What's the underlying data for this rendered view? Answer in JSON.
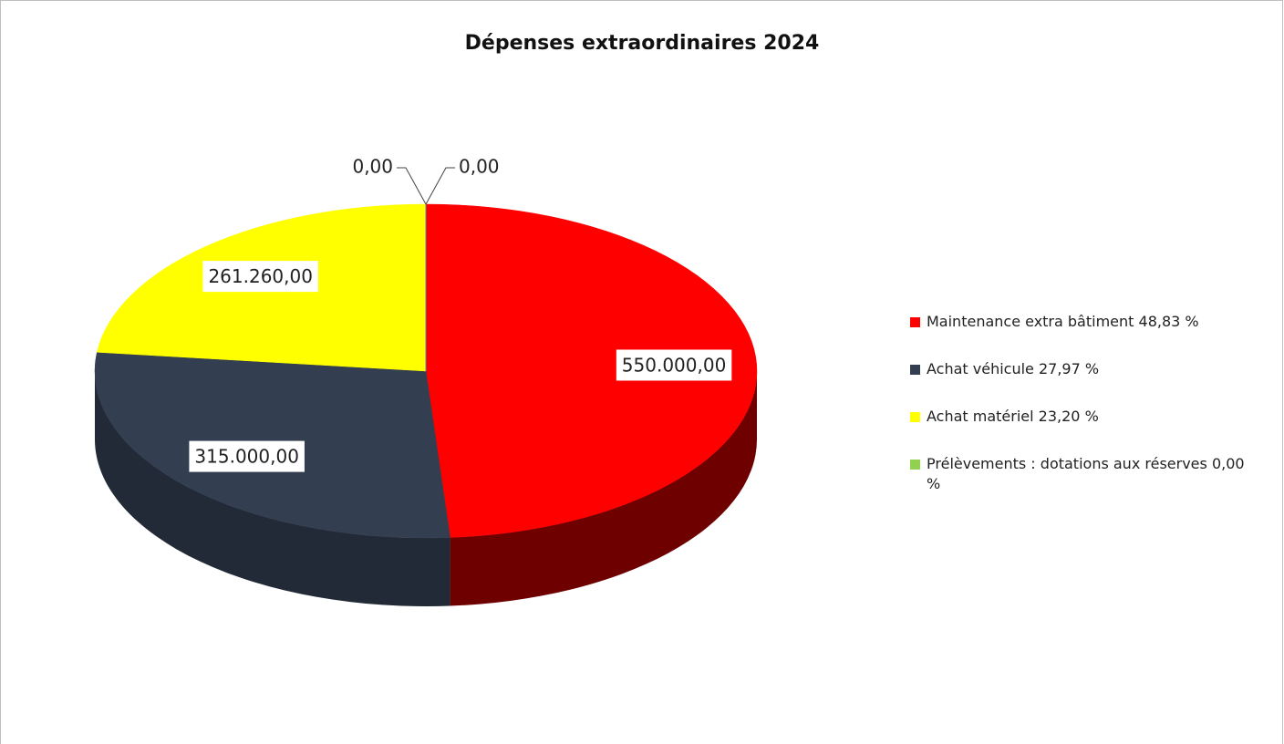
{
  "chart_data": {
    "type": "pie3d",
    "title": "Dépenses extraordinaires 2024",
    "categories": [
      "Maintenance extra bâtiment 48,83 %",
      "Achat véhicule 27,97 %",
      "Achat matériel 23,20 %",
      "Prélèvements : dotations aux réserves 0,00 %",
      null
    ],
    "values": [
      550000,
      315000,
      261260,
      0,
      0
    ],
    "value_labels": [
      "550.000,00",
      "315.000,00",
      "261.260,00",
      "0,00",
      "0,00"
    ],
    "colors": [
      "#ff0000",
      "#333f50",
      "#ffff00",
      "#92d050",
      "#4472c4"
    ],
    "side_colors": [
      "#6e0000",
      "#222a37",
      "#9a9a00",
      "#5a8a2a",
      "#2a4a80"
    ],
    "legend": "right"
  }
}
